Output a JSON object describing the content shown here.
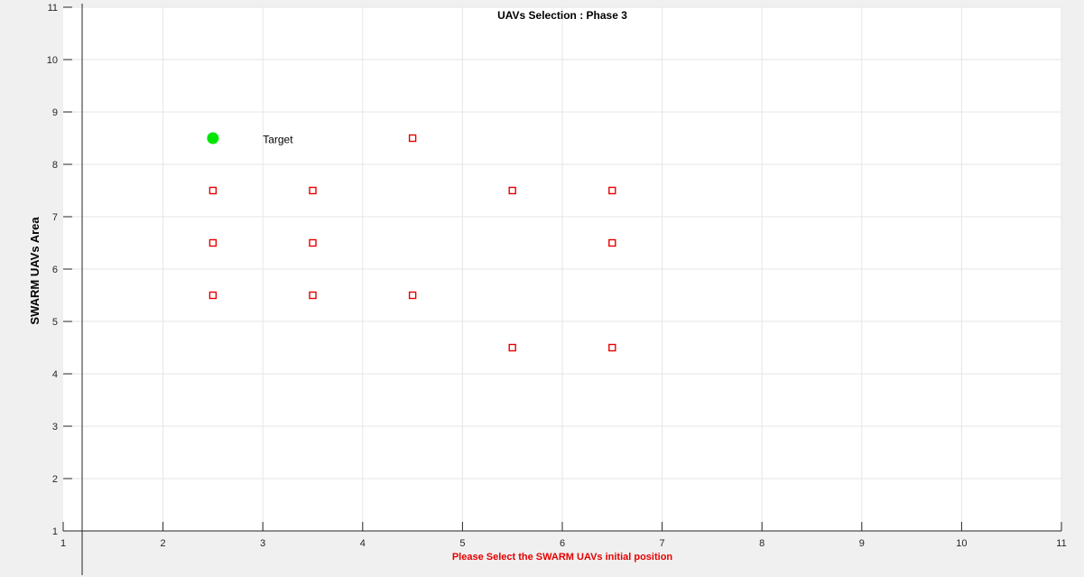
{
  "window": {
    "background": "#f0f0f0"
  },
  "chart_data": {
    "type": "scatter",
    "title": "UAVs Selection : Phase 3",
    "xlabel": "Please Select the SWARM UAVs initial position",
    "ylabel": "SWARM UAVs Area",
    "xlim": [
      1,
      11
    ],
    "ylim": [
      1,
      11
    ],
    "xticks": [
      1,
      2,
      3,
      4,
      5,
      6,
      7,
      8,
      9,
      10,
      11
    ],
    "yticks": [
      1,
      2,
      3,
      4,
      5,
      6,
      7,
      8,
      9,
      10,
      11
    ],
    "grid": true,
    "legend": "none",
    "series": [
      {
        "marker": "square",
        "color": "#e60000",
        "points": [
          [
            4.5,
            8.5
          ],
          [
            2.5,
            7.5
          ],
          [
            3.5,
            7.5
          ],
          [
            5.5,
            7.5
          ],
          [
            6.5,
            7.5
          ],
          [
            2.5,
            6.5
          ],
          [
            3.5,
            6.5
          ],
          [
            6.5,
            6.5
          ],
          [
            2.5,
            5.5
          ],
          [
            3.5,
            5.5
          ],
          [
            4.5,
            5.5
          ],
          [
            5.5,
            4.5
          ],
          [
            6.5,
            4.5
          ]
        ]
      },
      {
        "marker": "circle",
        "color": "#00e600",
        "points": [
          [
            2.5,
            8.5
          ]
        ]
      }
    ],
    "annotations": [
      {
        "text": "Target",
        "x": 3.0,
        "y": 8.47
      }
    ],
    "colors": {
      "axes_bg": "#ffffff",
      "grid": "#e6e6e6",
      "axis": "#262626",
      "xlabel": "#e60000"
    }
  }
}
